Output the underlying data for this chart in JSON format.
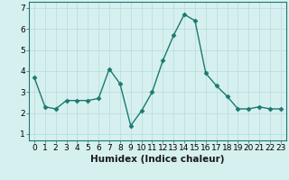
{
  "x": [
    0,
    1,
    2,
    3,
    4,
    5,
    6,
    7,
    8,
    9,
    10,
    11,
    12,
    13,
    14,
    15,
    16,
    17,
    18,
    19,
    20,
    21,
    22,
    23
  ],
  "y": [
    3.7,
    2.3,
    2.2,
    2.6,
    2.6,
    2.6,
    2.7,
    4.1,
    3.4,
    1.4,
    2.1,
    3.0,
    4.5,
    5.7,
    6.7,
    6.4,
    3.9,
    3.3,
    2.8,
    2.2,
    2.2,
    2.3,
    2.2,
    2.2
  ],
  "line_color": "#1a7a6e",
  "marker": "D",
  "marker_size": 2.5,
  "bg_color": "#d6f0f0",
  "grid_color": "#b8dada",
  "xlabel": "Humidex (Indice chaleur)",
  "xlim": [
    -0.5,
    23.5
  ],
  "ylim": [
    0.7,
    7.3
  ],
  "yticks": [
    1,
    2,
    3,
    4,
    5,
    6,
    7
  ],
  "xticks": [
    0,
    1,
    2,
    3,
    4,
    5,
    6,
    7,
    8,
    9,
    10,
    11,
    12,
    13,
    14,
    15,
    16,
    17,
    18,
    19,
    20,
    21,
    22,
    23
  ],
  "xlabel_fontsize": 7.5,
  "tick_fontsize": 6.5,
  "spine_color": "#1a7a6e"
}
